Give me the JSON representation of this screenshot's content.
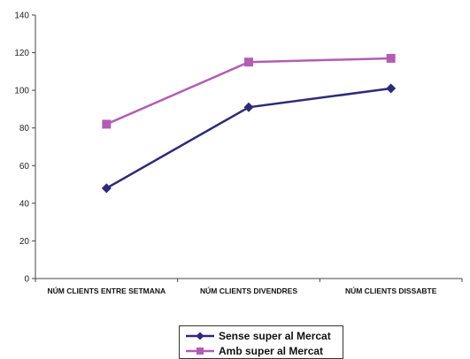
{
  "chart_data": {
    "type": "line",
    "categories": [
      "NÚM CLIENTS ENTRE SETMANA",
      "NÚM CLIENTS DIVENDRES",
      "NÚM CLIENTS DISSABTE"
    ],
    "series": [
      {
        "name": "Sense super al Mercat",
        "values": [
          48,
          91,
          101
        ],
        "color": "#2e2a78",
        "marker": "diamond"
      },
      {
        "name": "Amb super al Mercat",
        "values": [
          82,
          115,
          117
        ],
        "color": "#b25db5",
        "marker": "square"
      }
    ],
    "ylim": [
      0,
      140
    ],
    "yticks": [
      "0",
      "20",
      "40",
      "60",
      "80",
      "100",
      "120",
      "140"
    ],
    "grid": false,
    "legend_position": "bottom"
  }
}
